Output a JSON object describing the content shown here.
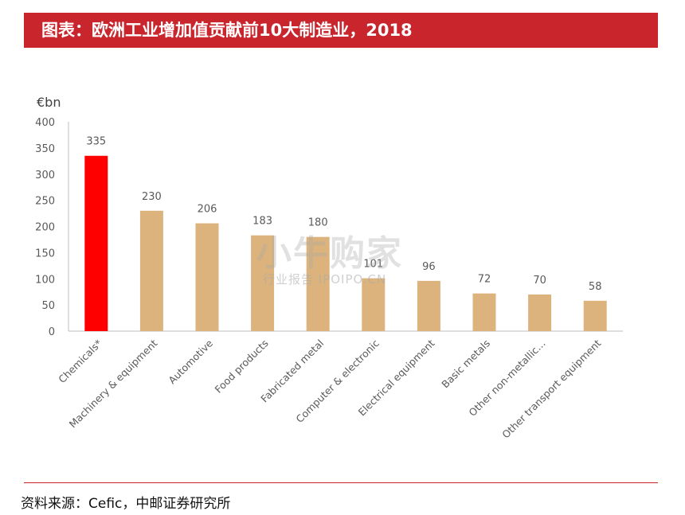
{
  "header": {
    "title": "图表：欧洲工业增加值贡献前10大制造业，2018"
  },
  "chart_data": {
    "type": "bar",
    "ylabel": "€bn",
    "ylim": [
      0,
      400
    ],
    "yticks": [
      0,
      50,
      100,
      150,
      200,
      250,
      300,
      350,
      400
    ],
    "categories": [
      "Chemicals*",
      "Machinery & equipment",
      "Automotive",
      "Food products",
      "Fabricated metal",
      "Computer & electronic",
      "Electrical equipment",
      "Basic metals",
      "Other non-metallic…",
      "Other transport equipment"
    ],
    "values": [
      335,
      230,
      206,
      183,
      180,
      101,
      96,
      72,
      70,
      58
    ],
    "data_labels": [
      "335",
      "230",
      "206",
      "183",
      "180",
      "101",
      "96",
      "72",
      "70",
      "58"
    ],
    "highlight_index": 0,
    "colors": {
      "highlight": "#ff0000",
      "bar": "#dcb37c",
      "axis": "#bfbfbf",
      "text": "#595959"
    },
    "grid": false
  },
  "watermark": {
    "main": "小牛购家",
    "sub": "行业报告 IPOIPO.CN"
  },
  "footer": {
    "source": "资料来源：Cefic，中邮证券研究所"
  },
  "colors": {
    "brand": "#c9252c"
  }
}
